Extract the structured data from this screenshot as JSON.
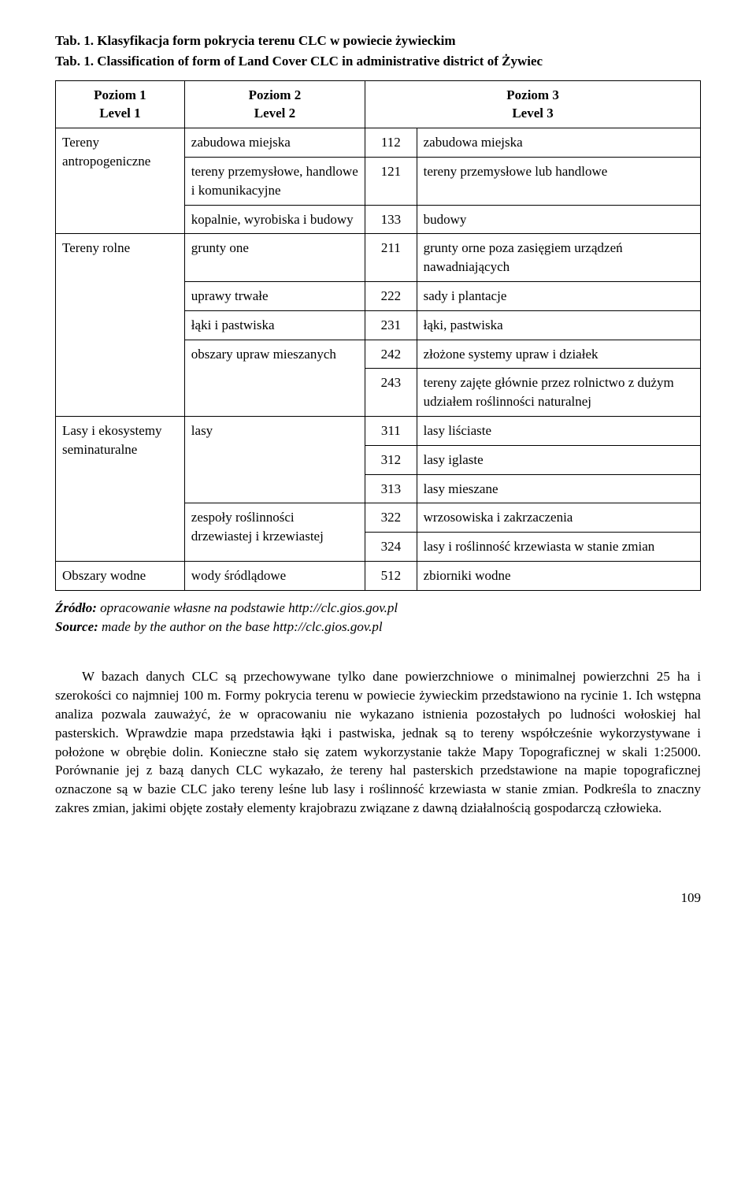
{
  "caption_pl": "Tab. 1. Klasyfikacja form pokrycia terenu CLC w powiecie żywieckim",
  "caption_en": "Tab. 1. Classification of form of Land Cover CLC in administrative district of Żywiec",
  "headers": {
    "col1_top": "Poziom 1",
    "col1_bot": "Level 1",
    "col2_top": "Poziom 2",
    "col2_bot": "Level 2",
    "col3_top": "Poziom 3",
    "col3_bot": "Level 3"
  },
  "rows": [
    {
      "l1": "Tereny antropogeniczne",
      "l1_rowspan": 3,
      "l2": "zabudowa miejska",
      "code": "112",
      "l3": "zabudowa miejska"
    },
    {
      "l2": "tereny przemysłowe, handlowe i komunikacyjne",
      "code": "121",
      "l3": "tereny przemysłowe lub handlowe"
    },
    {
      "l2": "kopalnie, wyrobiska i budowy",
      "code": "133",
      "l3": "budowy"
    },
    {
      "l1": "Tereny rolne",
      "l1_rowspan": 5,
      "l2": "grunty one",
      "code": "211",
      "l3": "grunty orne poza zasięgiem urządzeń nawadniających"
    },
    {
      "l2": "uprawy trwałe",
      "code": "222",
      "l3": "sady i plantacje"
    },
    {
      "l2": "łąki i pastwiska",
      "code": "231",
      "l3": "łąki, pastwiska"
    },
    {
      "l2": "obszary upraw mieszanych",
      "l2_rowspan": 2,
      "code": "242",
      "l3": "złożone systemy upraw i działek"
    },
    {
      "code": "243",
      "l3": "tereny zajęte głównie przez rolnictwo z dużym udziałem roślinności naturalnej"
    },
    {
      "l1": "Lasy i ekosystemy seminaturalne",
      "l1_rowspan": 5,
      "l2": "lasy",
      "l2_rowspan": 3,
      "code": "311",
      "l3": "lasy liściaste"
    },
    {
      "code": "312",
      "l3": "lasy iglaste"
    },
    {
      "code": "313",
      "l3": "lasy mieszane"
    },
    {
      "l2": "zespoły roślinności drzewiastej i krzewiastej",
      "l2_rowspan": 2,
      "code": "322",
      "l3": "wrzosowiska i zakrzaczenia"
    },
    {
      "code": "324",
      "l3": "lasy i roślinność krzewiasta w stanie zmian"
    },
    {
      "l1": "Obszary wodne",
      "l1_rowspan": 1,
      "l2": "wody śródlądowe",
      "code": "512",
      "l3": "zbiorniki wodne"
    }
  ],
  "source": {
    "label_pl": "Źródło:",
    "text_pl": " opracowanie własne na podstawie http://clc.gios.gov.pl",
    "label_en": "Source:",
    "text_en": " made by the author on the base http://clc.gios.gov.pl"
  },
  "paragraph": "W bazach danych CLC są przechowywane tylko dane powierzchniowe o minimalnej powierzchni 25 ha i szerokości co najmniej 100 m. Formy pokrycia terenu w powiecie żywieckim przedstawiono na rycinie 1. Ich wstępna analiza pozwala zauważyć, że w opracowaniu nie wykazano istnienia pozostałych po ludności wołoskiej hal pasterskich. Wprawdzie mapa przedstawia łąki i pastwiska, jednak są to tereny współcześnie wykorzystywane i położone w obrębie dolin. Konieczne stało się zatem wykorzystanie także Mapy Topograficznej w skali 1:25000. Porównanie jej z bazą danych CLC wykazało, że tereny hal pasterskich przedstawione na mapie topograficznej oznaczone są w bazie CLC jako tereny leśne lub lasy i roślinność krzewiasta w stanie zmian. Podkreśla to znaczny zakres zmian, jakimi objęte zostały elementy krajobrazu związane z dawną działalnością gospodarczą człowieka.",
  "page_number": "109",
  "table_style": {
    "col_widths": [
      "20%",
      "28%",
      "8%",
      "44%"
    ]
  }
}
